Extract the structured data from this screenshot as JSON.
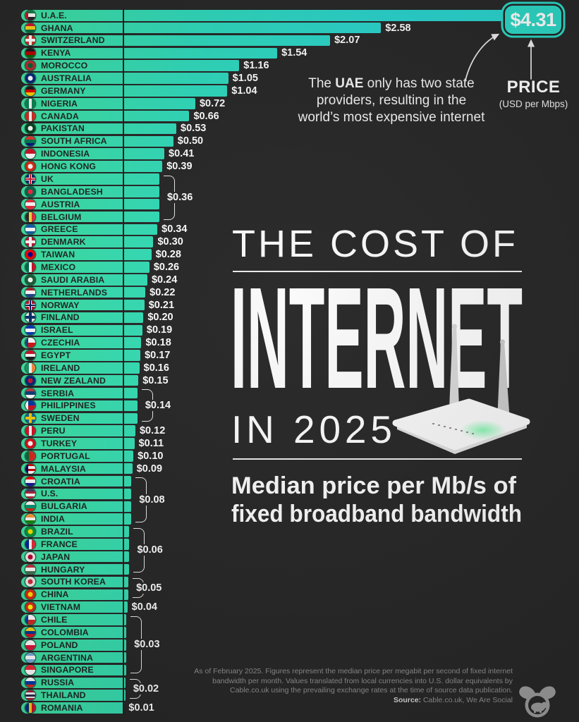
{
  "badge": {
    "price": "$4.31"
  },
  "price_axis_label": {
    "title": "PRICE",
    "unit": "(USD per Mbps)"
  },
  "annotation": {
    "line1_pre": "The ",
    "line1_bold": "UAE",
    "line1_post": " only has two state",
    "line2": "providers, resulting in the",
    "line3": "world’s most expensive internet"
  },
  "title_block": {
    "kicker": "THE COST OF",
    "main": "INTERNET",
    "year_line": "IN 2025",
    "subtitle1": "Median price per Mb/s of",
    "subtitle2": "fixed broadband bandwidth"
  },
  "footer": {
    "line1": "As of February 2025. Figures represent the median price per megabit per second of fixed internet",
    "line2": "bandwidth per month. Values translated from local currencies into U.S. dollar equivalents by",
    "line3": "Cable.co.uk using the prevailing exchange rates at the time of source data publication.",
    "source_label": "Source:",
    "source_rest": " Cable.co.uk, We Are Social"
  },
  "colors": {
    "background": "#272727",
    "bar_green": "#40e3a3",
    "bar_cyan": "#29d5cf",
    "badge_teal": "#2bd8c6",
    "bar_text": "#1c2621",
    "value_text": "#ffffff",
    "footer_text": "#8f8f8f"
  },
  "chart_data": {
    "type": "bar",
    "orientation": "horizontal",
    "title": "The Cost of Internet in 2025",
    "subtitle": "Median price per Mb/s of fixed broadband bandwidth",
    "unit": "USD per Mbps",
    "source": "Cable.co.uk, We Are Social",
    "xlim": [
      0,
      4.31
    ],
    "rows": [
      {
        "country": "U.A.E.",
        "value": 4.31,
        "label": null,
        "flag": {
          "t": "h",
          "c": [
            "#00843d",
            "#ffffff",
            "#222222"
          ],
          "b": "#ce1126"
        }
      },
      {
        "country": "GHANA",
        "value": 2.58,
        "label": "$2.58",
        "flag": {
          "t": "h",
          "c": [
            "#ce1126",
            "#fcd116",
            "#006b3f"
          ]
        }
      },
      {
        "country": "SWITZERLAND",
        "value": 2.07,
        "label": "$2.07",
        "flag": {
          "t": "cross",
          "c": [
            "#d52b1e",
            "#ffffff"
          ]
        }
      },
      {
        "country": "KENYA",
        "value": 1.54,
        "label": "$1.54",
        "flag": {
          "t": "h",
          "c": [
            "#1a1a1a",
            "#bb0000",
            "#006600"
          ]
        }
      },
      {
        "country": "MOROCCO",
        "value": 1.16,
        "label": "$1.16",
        "flag": {
          "t": "dot",
          "c": [
            "#c1272d",
            "#006233"
          ]
        }
      },
      {
        "country": "AUSTRALIA",
        "value": 1.05,
        "label": "$1.05",
        "flag": {
          "t": "dot",
          "c": [
            "#00247d",
            "#ffffff"
          ]
        }
      },
      {
        "country": "GERMANY",
        "value": 1.04,
        "label": "$1.04",
        "flag": {
          "t": "h",
          "c": [
            "#1a1a1a",
            "#dd0000",
            "#ffce00"
          ]
        }
      },
      {
        "country": "NIGERIA",
        "value": 0.72,
        "label": "$0.72",
        "flag": {
          "t": "v",
          "c": [
            "#008751",
            "#ffffff",
            "#008751"
          ]
        }
      },
      {
        "country": "CANADA",
        "value": 0.66,
        "label": "$0.66",
        "flag": {
          "t": "v",
          "c": [
            "#d52b1e",
            "#ffffff",
            "#d52b1e"
          ]
        }
      },
      {
        "country": "PAKISTAN",
        "value": 0.53,
        "label": "$0.53",
        "flag": {
          "t": "dot",
          "c": [
            "#01411c",
            "#ffffff"
          ]
        }
      },
      {
        "country": "SOUTH AFRICA",
        "value": 0.5,
        "label": "$0.50",
        "flag": {
          "t": "h",
          "c": [
            "#de3831",
            "#007a4d",
            "#001489"
          ]
        }
      },
      {
        "country": "INDONESIA",
        "value": 0.41,
        "label": "$0.41",
        "flag": {
          "t": "h",
          "c": [
            "#ce1126",
            "#ffffff"
          ]
        }
      },
      {
        "country": "HONG KONG",
        "value": 0.39,
        "label": "$0.39",
        "flag": {
          "t": "dot",
          "c": [
            "#de2910",
            "#ffffff"
          ]
        }
      },
      {
        "country": "UK",
        "value": 0.36,
        "label": null,
        "flag": {
          "t": "cross",
          "c": [
            "#012169",
            "#ffffff",
            "#cf142b"
          ]
        }
      },
      {
        "country": "BANGLADESH",
        "value": 0.36,
        "label": null,
        "flag": {
          "t": "dot",
          "c": [
            "#006a4e",
            "#f42a41"
          ]
        }
      },
      {
        "country": "AUSTRIA",
        "value": 0.36,
        "label": null,
        "flag": {
          "t": "h",
          "c": [
            "#ed2939",
            "#ffffff",
            "#ed2939"
          ]
        }
      },
      {
        "country": "BELGIUM",
        "value": 0.36,
        "label": null,
        "flag": {
          "t": "v",
          "c": [
            "#2d2926",
            "#fae042",
            "#ed2939"
          ]
        }
      },
      {
        "country": "GREECE",
        "value": 0.34,
        "label": "$0.34",
        "flag": {
          "t": "h",
          "c": [
            "#0d5eaf",
            "#ffffff",
            "#0d5eaf"
          ]
        }
      },
      {
        "country": "DENMARK",
        "value": 0.3,
        "label": "$0.30",
        "flag": {
          "t": "cross",
          "c": [
            "#c8102e",
            "#ffffff"
          ]
        }
      },
      {
        "country": "TAIWAN",
        "value": 0.28,
        "label": "$0.28",
        "flag": {
          "t": "dot",
          "c": [
            "#fe0000",
            "#000095"
          ]
        }
      },
      {
        "country": "MEXICO",
        "value": 0.26,
        "label": "$0.26",
        "flag": {
          "t": "v",
          "c": [
            "#006847",
            "#ffffff",
            "#ce1126"
          ]
        }
      },
      {
        "country": "SAUDI ARABIA",
        "value": 0.24,
        "label": "$0.24",
        "flag": {
          "t": "dot",
          "c": [
            "#165d31",
            "#ffffff"
          ]
        }
      },
      {
        "country": "NETHERLANDS",
        "value": 0.22,
        "label": "$0.22",
        "flag": {
          "t": "h",
          "c": [
            "#ae1c28",
            "#ffffff",
            "#21468b"
          ]
        }
      },
      {
        "country": "NORWAY",
        "value": 0.21,
        "label": "$0.21",
        "flag": {
          "t": "cross",
          "c": [
            "#ba0c2f",
            "#ffffff",
            "#00205b"
          ]
        }
      },
      {
        "country": "FINLAND",
        "value": 0.2,
        "label": "$0.20",
        "flag": {
          "t": "cross",
          "c": [
            "#f0f0f0",
            "#002f6c"
          ]
        }
      },
      {
        "country": "ISRAEL",
        "value": 0.19,
        "label": "$0.19",
        "flag": {
          "t": "h",
          "c": [
            "#0038b8",
            "#ffffff",
            "#0038b8"
          ]
        }
      },
      {
        "country": "CZECHIA",
        "value": 0.18,
        "label": "$0.18",
        "flag": {
          "t": "h",
          "c": [
            "#ffffff",
            "#d7141a"
          ],
          "b": "#11457e"
        }
      },
      {
        "country": "EGYPT",
        "value": 0.17,
        "label": "$0.17",
        "flag": {
          "t": "h",
          "c": [
            "#ce1126",
            "#ffffff",
            "#1a1a1a"
          ]
        }
      },
      {
        "country": "IRELAND",
        "value": 0.16,
        "label": "$0.16",
        "flag": {
          "t": "v",
          "c": [
            "#169b62",
            "#ffffff",
            "#ff883e"
          ]
        }
      },
      {
        "country": "NEW ZEALAND",
        "value": 0.15,
        "label": "$0.15",
        "flag": {
          "t": "dot",
          "c": [
            "#00247d",
            "#cc142b"
          ]
        }
      },
      {
        "country": "SERBIA",
        "value": 0.14,
        "label": null,
        "flag": {
          "t": "h",
          "c": [
            "#c6363c",
            "#0c4076",
            "#ffffff"
          ]
        }
      },
      {
        "country": "PHILIPPINES",
        "value": 0.14,
        "label": null,
        "flag": {
          "t": "h",
          "c": [
            "#0038a8",
            "#ce1126"
          ],
          "b": "#ffffff"
        }
      },
      {
        "country": "SWEDEN",
        "value": 0.14,
        "label": null,
        "flag": {
          "t": "cross",
          "c": [
            "#006aa7",
            "#fecc00"
          ]
        }
      },
      {
        "country": "PERU",
        "value": 0.12,
        "label": "$0.12",
        "flag": {
          "t": "v",
          "c": [
            "#d91023",
            "#ffffff",
            "#d91023"
          ]
        }
      },
      {
        "country": "TURKEY",
        "value": 0.11,
        "label": "$0.11",
        "flag": {
          "t": "dot",
          "c": [
            "#e30a17",
            "#ffffff"
          ]
        }
      },
      {
        "country": "PORTUGAL",
        "value": 0.1,
        "label": "$0.10",
        "flag": {
          "t": "v",
          "c": [
            "#046a38",
            "#da291c",
            "#da291c"
          ]
        }
      },
      {
        "country": "MALAYSIA",
        "value": 0.09,
        "label": "$0.09",
        "flag": {
          "t": "h",
          "c": [
            "#cc0001",
            "#ffffff",
            "#cc0001",
            "#ffffff"
          ],
          "b": "#010066"
        }
      },
      {
        "country": "CROATIA",
        "value": 0.08,
        "label": null,
        "flag": {
          "t": "h",
          "c": [
            "#ff0000",
            "#ffffff",
            "#171796"
          ]
        }
      },
      {
        "country": "U.S.",
        "value": 0.08,
        "label": null,
        "flag": {
          "t": "h",
          "c": [
            "#3c3b6e",
            "#b22234",
            "#ffffff",
            "#b22234"
          ]
        }
      },
      {
        "country": "BULGARIA",
        "value": 0.08,
        "label": null,
        "flag": {
          "t": "h",
          "c": [
            "#ffffff",
            "#00966e",
            "#d62612"
          ]
        }
      },
      {
        "country": "INDIA",
        "value": 0.08,
        "label": null,
        "flag": {
          "t": "h",
          "c": [
            "#ff9933",
            "#ffffff",
            "#138808"
          ]
        }
      },
      {
        "country": "BRAZIL",
        "value": 0.06,
        "label": null,
        "flag": {
          "t": "dot",
          "c": [
            "#009c3b",
            "#ffdf00"
          ]
        }
      },
      {
        "country": "FRANCE",
        "value": 0.06,
        "label": null,
        "flag": {
          "t": "v",
          "c": [
            "#002395",
            "#ffffff",
            "#ed2939"
          ]
        }
      },
      {
        "country": "JAPAN",
        "value": 0.06,
        "label": null,
        "flag": {
          "t": "dot",
          "c": [
            "#f0f0f0",
            "#bc002d"
          ]
        }
      },
      {
        "country": "HUNGARY",
        "value": 0.06,
        "label": null,
        "flag": {
          "t": "h",
          "c": [
            "#ce2939",
            "#ffffff",
            "#477050"
          ]
        }
      },
      {
        "country": "SOUTH KOREA",
        "value": 0.05,
        "label": null,
        "flag": {
          "t": "dot",
          "c": [
            "#f0f0f0",
            "#cd2e3a"
          ]
        }
      },
      {
        "country": "CHINA",
        "value": 0.05,
        "label": null,
        "flag": {
          "t": "dot",
          "c": [
            "#de2910",
            "#ffde00"
          ]
        }
      },
      {
        "country": "VIETNAM",
        "value": 0.04,
        "label": "$0.04",
        "flag": {
          "t": "dot",
          "c": [
            "#da251d",
            "#ffff00"
          ]
        }
      },
      {
        "country": "CHILE",
        "value": 0.03,
        "label": null,
        "flag": {
          "t": "h",
          "c": [
            "#ffffff",
            "#d52b1e"
          ],
          "b": "#0039a6"
        }
      },
      {
        "country": "COLOMBIA",
        "value": 0.03,
        "label": null,
        "flag": {
          "t": "h",
          "c": [
            "#fcd116",
            "#003893",
            "#ce1126"
          ]
        }
      },
      {
        "country": "POLAND",
        "value": 0.03,
        "label": null,
        "flag": {
          "t": "h",
          "c": [
            "#ffffff",
            "#dc143c"
          ]
        }
      },
      {
        "country": "ARGENTINA",
        "value": 0.03,
        "label": null,
        "flag": {
          "t": "h",
          "c": [
            "#74acdf",
            "#ffffff",
            "#74acdf"
          ]
        }
      },
      {
        "country": "SINGAPORE",
        "value": 0.03,
        "label": null,
        "flag": {
          "t": "h",
          "c": [
            "#ed2939",
            "#ffffff"
          ]
        }
      },
      {
        "country": "RUSSIA",
        "value": 0.02,
        "label": null,
        "flag": {
          "t": "h",
          "c": [
            "#ffffff",
            "#0039a6",
            "#d52b1e"
          ]
        }
      },
      {
        "country": "THAILAND",
        "value": 0.02,
        "label": null,
        "flag": {
          "t": "h",
          "c": [
            "#a51931",
            "#f4f5f8",
            "#2d2a4a",
            "#f4f5f8",
            "#a51931"
          ]
        }
      },
      {
        "country": "ROMANIA",
        "value": 0.01,
        "label": "$0.01",
        "flag": {
          "t": "v",
          "c": [
            "#002b7f",
            "#fcd116",
            "#ce1126"
          ]
        }
      }
    ],
    "groups": [
      {
        "label": "$0.36",
        "value": 0.36,
        "rows": [
          14,
          17
        ]
      },
      {
        "label": "$0.14",
        "value": 0.14,
        "rows": [
          31,
          33
        ]
      },
      {
        "label": "$0.08",
        "value": 0.08,
        "rows": [
          38,
          41
        ]
      },
      {
        "label": "$0.06",
        "value": 0.06,
        "rows": [
          42,
          45
        ]
      },
      {
        "label": "$0.05",
        "value": 0.05,
        "rows": [
          46,
          47
        ]
      },
      {
        "label": "$0.03",
        "value": 0.03,
        "rows": [
          49,
          53
        ]
      },
      {
        "label": "$0.02",
        "value": 0.02,
        "rows": [
          54,
          55
        ]
      }
    ]
  }
}
